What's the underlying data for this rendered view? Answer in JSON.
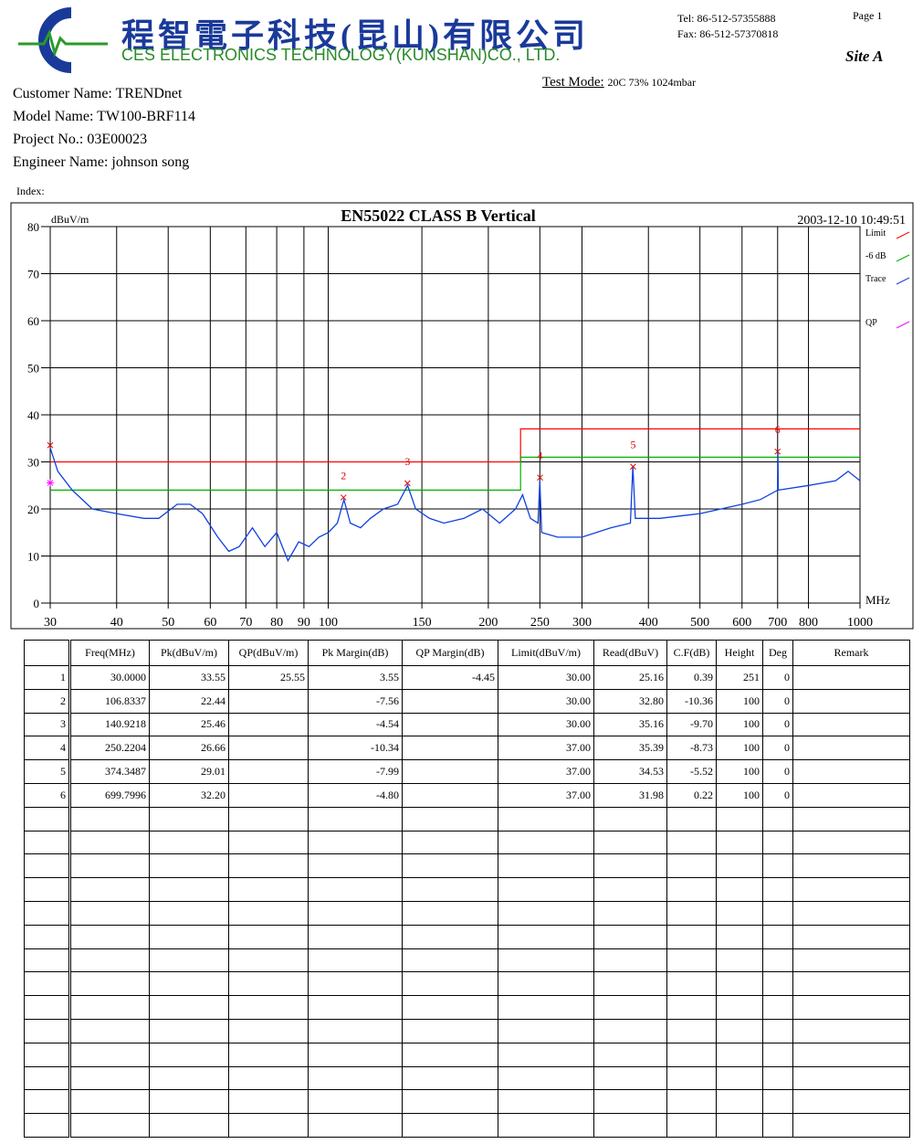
{
  "header": {
    "company_cn": "程智電子科技(昆山)有限公司",
    "company_en": "CES ELECTRONICS TECHNOLOGY(KUNSHAN)CO., LTD.",
    "tel": "Tel: 86-512-57355888",
    "fax": "Fax: 86-512-57370818",
    "page": "Page 1",
    "site": "Site A",
    "test_mode_label": "Test Mode:",
    "test_mode": "20C 73% 1024mbar"
  },
  "info": [
    "Customer Name: TRENDnet",
    "Model Name: TW100-BRF114",
    "Project No.: 03E00023",
    "Engineer Name: johnson song"
  ],
  "index_label": "Index:",
  "chart_data": {
    "type": "line",
    "title": "EN55022 CLASS B  Vertical",
    "subtitle": "2003-12-10 10:49:51",
    "y_label": "dBuV/m",
    "x_label": "MHz",
    "log_x": true,
    "grid": true,
    "xlim": [
      30,
      1000
    ],
    "ylim": [
      0,
      80
    ],
    "xticks": [
      30,
      40,
      50,
      60,
      70,
      80,
      90,
      100,
      150,
      200,
      250,
      300,
      400,
      500,
      600,
      700,
      800,
      1000
    ],
    "yticks": [
      0,
      10,
      20,
      30,
      40,
      50,
      60,
      70,
      80
    ],
    "series": [
      {
        "name": "Limit",
        "color": "#ff0000",
        "x": [
          30,
          230,
          230,
          1000
        ],
        "values": [
          30,
          30,
          37,
          37
        ]
      },
      {
        "name": "-6 dB",
        "color": "#00b000",
        "x": [
          30,
          230,
          230,
          1000
        ],
        "values": [
          24,
          24,
          31,
          31
        ]
      },
      {
        "name": "Trace",
        "color": "#1040e0",
        "x": [
          30,
          31,
          33,
          36,
          40,
          45,
          48,
          52,
          55,
          58,
          62,
          65,
          68,
          72,
          76,
          80,
          84,
          88,
          92,
          96,
          100,
          104,
          107,
          110,
          115,
          120,
          127,
          135,
          141,
          146,
          155,
          165,
          180,
          195,
          210,
          225,
          232,
          240,
          248,
          250,
          252,
          270,
          300,
          340,
          370,
          374,
          378,
          420,
          500,
          600,
          650,
          700,
          701,
          702,
          800,
          900,
          950,
          1000
        ],
        "values": [
          33,
          28,
          24,
          20,
          19,
          18,
          18,
          21,
          21,
          19,
          14,
          11,
          12,
          16,
          12,
          15,
          9,
          13,
          12,
          14,
          15,
          17,
          22,
          17,
          16,
          18,
          20,
          21,
          25,
          20,
          18,
          17,
          18,
          20,
          17,
          20,
          23,
          18,
          17,
          26,
          15,
          14,
          14,
          16,
          17,
          29,
          18,
          18,
          19,
          21,
          22,
          24,
          32,
          24,
          25,
          26,
          28,
          26
        ]
      },
      {
        "name": "QP",
        "color": "#ff00ff",
        "x": [
          30
        ],
        "values": [
          25.55
        ]
      }
    ],
    "peaks": {
      "color": "#e00000",
      "x": [
        30,
        106.8337,
        140.9218,
        250.2204,
        374.3487,
        699.7996
      ],
      "values": [
        33.55,
        22.44,
        25.46,
        26.66,
        29.01,
        32.2
      ],
      "labels": [
        null,
        "2",
        "3",
        "4",
        "5",
        "6"
      ]
    }
  },
  "table": {
    "columns": [
      "Freq(MHz)",
      "Pk(dBuV/m)",
      "QP(dBuV/m)",
      "Pk Margin(dB)",
      "QP Margin(dB)",
      "Limit(dBuV/m)",
      "Read(dBuV)",
      "C.F(dB)",
      "Height",
      "Deg",
      "Remark"
    ],
    "rows": [
      [
        "1",
        "30.0000",
        "33.55",
        "25.55",
        "3.55",
        "-4.45",
        "30.00",
        "25.16",
        "0.39",
        "251",
        "0"
      ],
      [
        "2",
        "106.8337",
        "22.44",
        null,
        "-7.56",
        null,
        "30.00",
        "32.80",
        "-10.36",
        "100",
        "0"
      ],
      [
        "3",
        "140.9218",
        "25.46",
        null,
        "-4.54",
        null,
        "30.00",
        "35.16",
        "-9.70",
        "100",
        "0"
      ],
      [
        "4",
        "250.2204",
        "26.66",
        null,
        "-10.34",
        null,
        "37.00",
        "35.39",
        "-8.73",
        "100",
        "0"
      ],
      [
        "5",
        "374.3487",
        "29.01",
        null,
        "-7.99",
        null,
        "37.00",
        "34.53",
        "-5.52",
        "100",
        "0"
      ],
      [
        "6",
        "699.7996",
        "32.20",
        null,
        "-4.80",
        null,
        "37.00",
        "31.98",
        "0.22",
        "100",
        "0"
      ]
    ]
  }
}
